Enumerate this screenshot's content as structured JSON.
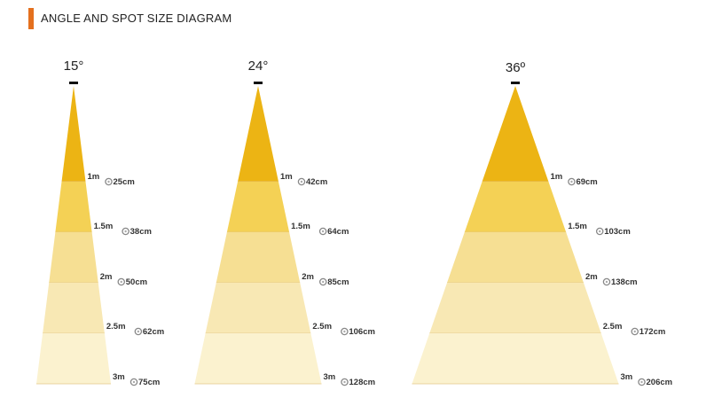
{
  "header": {
    "title": "ANGLE AND SPOT SIZE DIAGRAM",
    "accent_color": "#e4701e"
  },
  "band_colors": [
    "#ecb414",
    "#f4d155",
    "#f6df93",
    "#f8e8b4",
    "#fbf2cf"
  ],
  "beams": [
    {
      "angle_label": "15°",
      "rows": [
        {
          "distance": "1m",
          "spot": "25cm"
        },
        {
          "distance": "1.5m",
          "spot": "38cm"
        },
        {
          "distance": "2m",
          "spot": "50cm"
        },
        {
          "distance": "2.5m",
          "spot": "62cm"
        },
        {
          "distance": "3m",
          "spot": "75cm"
        }
      ]
    },
    {
      "angle_label": "24°",
      "rows": [
        {
          "distance": "1m",
          "spot": "42cm"
        },
        {
          "distance": "1.5m",
          "spot": "64cm"
        },
        {
          "distance": "2m",
          "spot": "85cm"
        },
        {
          "distance": "2.5m",
          "spot": "106cm"
        },
        {
          "distance": "3m",
          "spot": "128cm"
        }
      ]
    },
    {
      "angle_label": "36º",
      "rows": [
        {
          "distance": "1m",
          "spot": "69cm"
        },
        {
          "distance": "1.5m",
          "spot": "103cm"
        },
        {
          "distance": "2m",
          "spot": "138cm"
        },
        {
          "distance": "2.5m",
          "spot": "172cm"
        },
        {
          "distance": "3m",
          "spot": "206cm"
        }
      ]
    }
  ]
}
